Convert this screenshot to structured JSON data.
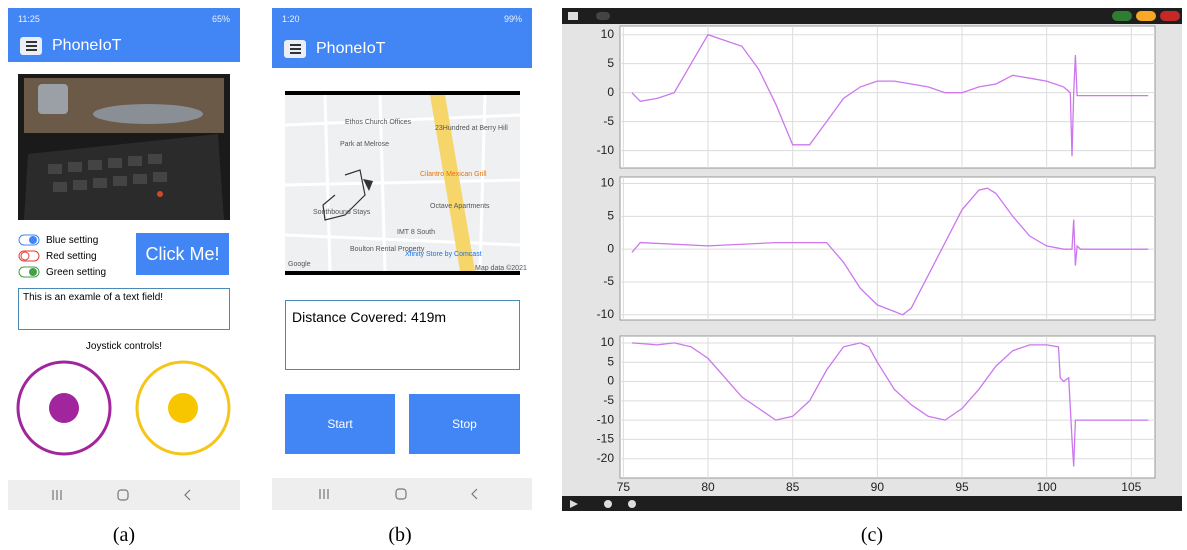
{
  "panel_a": {
    "status_time": "11:25",
    "status_battery": "65%",
    "app_title": "PhoneIoT",
    "toggles": [
      "Blue setting",
      "Red setting",
      "Green setting"
    ],
    "button": "Click Me!",
    "text_field": "This is an examle of a text field!",
    "joystick_label": "Joystick controls!"
  },
  "panel_b": {
    "status_time": "1:20",
    "status_battery": "99%",
    "app_title": "PhoneIoT",
    "map_labels": [
      "Ethos Church Offices",
      "Park at Melrose",
      "23Hundred at Berry Hill",
      "Cilantro Mexican Grill",
      "Southbound Stays",
      "Octave Apartments",
      "IMT 8 South",
      "Boulton Rental Property",
      "Xfinity Store by Comcast",
      "Google",
      "Map data ©2021"
    ],
    "distance": "Distance Covered: 419m",
    "start_button": "Start",
    "stop_button": "Stop"
  },
  "captions": [
    "(a)",
    "(b)",
    "(c)"
  ],
  "chart_data": [
    {
      "type": "line",
      "color": "#cc77ee",
      "grid": true,
      "xlim": [
        74.8,
        106.4
      ],
      "ylim": [
        -13,
        11.5
      ],
      "xticks": [
        75,
        80,
        85,
        90,
        95,
        100,
        105
      ],
      "yticks": [
        10,
        5,
        0,
        -5,
        -10
      ],
      "x": [
        75.5,
        76,
        77,
        78,
        79,
        80,
        81,
        82,
        83,
        84,
        85,
        86,
        87,
        88,
        89,
        90,
        91,
        92,
        93,
        94,
        95,
        96,
        97,
        98,
        99,
        100,
        101,
        101.4,
        101.5,
        101.6,
        101.7,
        101.8,
        102,
        106
      ],
      "values": [
        0,
        -1.5,
        -1,
        0,
        5,
        10,
        9,
        8,
        4,
        -2,
        -9,
        -9,
        -5,
        -1,
        1,
        2,
        2,
        1.5,
        1,
        0,
        0,
        1,
        1.5,
        3,
        2.5,
        2,
        1,
        0,
        -11,
        0,
        6.5,
        -0.5,
        -0.5,
        -0.5
      ]
    },
    {
      "type": "line",
      "color": "#cc77ee",
      "grid": true,
      "xlim": [
        74.8,
        106.4
      ],
      "ylim": [
        -10.8,
        11
      ],
      "xticks": [
        75,
        80,
        85,
        90,
        95,
        100,
        105
      ],
      "yticks": [
        10,
        5,
        0,
        -5,
        -10
      ],
      "x": [
        75.5,
        76,
        80,
        84,
        87,
        88,
        89,
        90,
        91,
        91.5,
        92,
        93,
        94,
        95,
        96,
        96.5,
        97,
        98,
        99,
        100,
        101,
        101.5,
        101.6,
        101.7,
        101.8,
        102,
        106
      ],
      "values": [
        -0.5,
        1,
        0.5,
        1,
        1,
        -2,
        -6,
        -8.5,
        -9.5,
        -10,
        -9,
        -4,
        1,
        6,
        9,
        9.3,
        8.5,
        5,
        2,
        0.5,
        0,
        0,
        4.5,
        -2.5,
        0.5,
        0,
        0
      ]
    },
    {
      "type": "line",
      "color": "#cc77ee",
      "grid": true,
      "xlim": [
        74.8,
        106.4
      ],
      "ylim": [
        -25,
        11.8
      ],
      "xticks": [
        75,
        80,
        85,
        90,
        95,
        100,
        105
      ],
      "yticks": [
        10,
        5,
        0,
        -5,
        -10,
        -15,
        -20
      ],
      "x": [
        75.5,
        77,
        78,
        79,
        80,
        81,
        82,
        83,
        84,
        85,
        86,
        87,
        88,
        89,
        89.5,
        90,
        91,
        92,
        93,
        94,
        95,
        96,
        97,
        98,
        99,
        100,
        100.7,
        100.8,
        101,
        101.3,
        101.5,
        101.6,
        101.7,
        102,
        106
      ],
      "values": [
        10,
        9.5,
        10,
        9,
        6,
        1,
        -4,
        -7,
        -10,
        -9,
        -5,
        3,
        9,
        10,
        9,
        5,
        -2,
        -6,
        -9,
        -10,
        -7,
        -2,
        4,
        8,
        9.5,
        9.5,
        9,
        1,
        0,
        1,
        -15,
        -22,
        -10,
        -10,
        -10
      ]
    }
  ]
}
